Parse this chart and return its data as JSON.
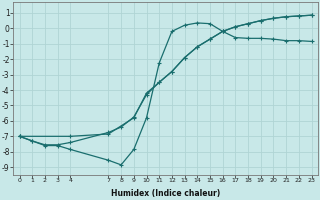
{
  "xlabel": "Humidex (Indice chaleur)",
  "background_color": "#c8e8e8",
  "grid_color": "#b0d4d4",
  "line_color": "#1a6e6e",
  "xlim": [
    -0.5,
    23.5
  ],
  "ylim": [
    -9.5,
    1.7
  ],
  "yticks": [
    1,
    0,
    -1,
    -2,
    -3,
    -4,
    -5,
    -6,
    -7,
    -8,
    -9
  ],
  "xticks": [
    0,
    1,
    2,
    3,
    4,
    7,
    8,
    9,
    10,
    11,
    12,
    13,
    14,
    15,
    16,
    17,
    18,
    19,
    20,
    21,
    22,
    23
  ],
  "line1_x": [
    0,
    1,
    2,
    3,
    4,
    7,
    8,
    9,
    10,
    11,
    12,
    13,
    14,
    15,
    16,
    17,
    18,
    19,
    20,
    21,
    22,
    23
  ],
  "line1_y": [
    -7.0,
    -7.3,
    -7.6,
    -7.6,
    -7.85,
    -8.55,
    -8.85,
    -7.85,
    -5.8,
    -2.25,
    -0.2,
    0.2,
    0.35,
    0.3,
    -0.2,
    -0.6,
    -0.65,
    -0.65,
    -0.7,
    -0.8,
    -0.8,
    -0.85
  ],
  "line2_x": [
    0,
    1,
    2,
    3,
    4,
    7,
    8,
    9,
    10,
    11,
    12,
    13,
    14,
    15,
    16,
    17,
    18,
    19,
    20,
    21,
    22,
    23
  ],
  "line2_y": [
    -7.0,
    -7.3,
    -7.55,
    -7.55,
    -7.4,
    -6.75,
    -6.4,
    -5.75,
    -4.3,
    -3.5,
    -2.8,
    -1.9,
    -1.2,
    -0.7,
    -0.2,
    0.1,
    0.3,
    0.5,
    0.65,
    0.75,
    0.8,
    0.85
  ],
  "line3_x": [
    0,
    4,
    7,
    9,
    10,
    11,
    12,
    13,
    14,
    15,
    16,
    17,
    18,
    19,
    20,
    21,
    22,
    23
  ],
  "line3_y": [
    -7.0,
    -7.0,
    -6.85,
    -5.8,
    -4.2,
    -3.5,
    -2.8,
    -1.9,
    -1.2,
    -0.7,
    -0.2,
    0.1,
    0.3,
    0.5,
    0.65,
    0.75,
    0.8,
    0.85
  ]
}
